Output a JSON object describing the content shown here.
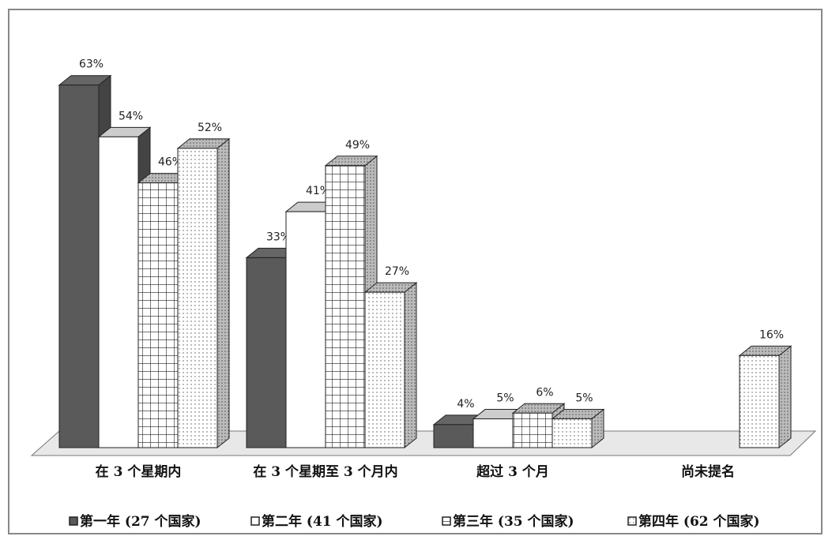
{
  "chart_data": {
    "type": "bar3d",
    "categories": [
      "在 3 个星期内",
      "在 3 个星期至 3 个月内",
      "超过 3 个月",
      "尚未提名"
    ],
    "series": [
      {
        "name": "第一年 (27 个国家)",
        "color": "#5a5a5a",
        "pattern": "solid",
        "values": [
          63,
          33,
          4,
          null
        ],
        "value_labels": [
          "63%",
          "33%",
          "4%",
          null
        ]
      },
      {
        "name": "第二年 (41 个国家)",
        "color": "#ffffff",
        "pattern": "solid",
        "values": [
          54,
          41,
          5,
          null
        ],
        "value_labels": [
          "54%",
          "41%",
          "5%",
          null
        ]
      },
      {
        "name": "第三年 (35 个国家)",
        "color": "#ffffff",
        "pattern": "grid",
        "values": [
          46,
          49,
          6,
          null
        ],
        "value_labels": [
          "46%",
          "49%",
          "6%",
          null
        ]
      },
      {
        "name": "第四年 (62 个国家)",
        "color": "#ffffff",
        "pattern": "dots",
        "values": [
          52,
          27,
          5,
          16
        ],
        "value_labels": [
          "52%",
          "27%",
          "5%",
          "16%"
        ]
      }
    ],
    "legend": "bottom"
  }
}
